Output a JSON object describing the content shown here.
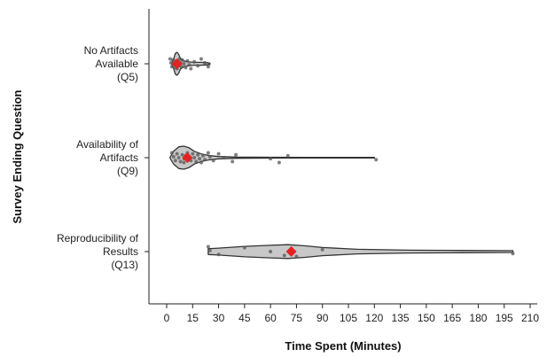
{
  "chart_data": {
    "type": "violin",
    "title": "",
    "xlabel": "Time Spent (Minutes)",
    "ylabel": "Survey Ending Question",
    "xlim": [
      -10,
      210
    ],
    "xticks": [
      0,
      15,
      30,
      45,
      60,
      75,
      90,
      105,
      120,
      135,
      150,
      165,
      180,
      195,
      210
    ],
    "grid": false,
    "colors": {
      "violin_fill": "#c8c8c8",
      "violin_stroke": "#333333",
      "point": "#555555",
      "mean_marker": "#e32222"
    },
    "categories": [
      {
        "label_lines": [
          "No Artifacts",
          "Available",
          "(Q5)"
        ],
        "mean": 6,
        "points": [
          2,
          2.5,
          3,
          3.5,
          4,
          4.5,
          5,
          5.5,
          6,
          6.5,
          7,
          7.5,
          8,
          8.5,
          9,
          10,
          11,
          12,
          13,
          14,
          16,
          18,
          20,
          22,
          24
        ],
        "density": [
          [
            3,
            0.05
          ],
          [
            4,
            0.4
          ],
          [
            5,
            0.9
          ],
          [
            6,
            1.0
          ],
          [
            7,
            0.8
          ],
          [
            8,
            0.45
          ],
          [
            10,
            0.25
          ],
          [
            13,
            0.16
          ],
          [
            16,
            0.12
          ],
          [
            20,
            0.12
          ],
          [
            23,
            0.1
          ],
          [
            25,
            0.05
          ]
        ]
      },
      {
        "label_lines": [
          "Availability of",
          "Artifacts",
          "(Q9)"
        ],
        "mean": 12,
        "points": [
          3,
          4,
          5,
          6,
          7,
          8,
          9,
          10,
          10,
          11,
          12,
          12,
          13,
          14,
          15,
          16,
          17,
          18,
          19,
          20,
          21,
          22,
          24,
          25,
          27,
          30,
          33,
          38,
          40,
          60,
          65,
          70,
          121
        ],
        "density": [
          [
            2,
            0.05
          ],
          [
            4,
            0.55
          ],
          [
            7,
            0.95
          ],
          [
            10,
            1.0
          ],
          [
            13,
            0.85
          ],
          [
            16,
            0.55
          ],
          [
            20,
            0.33
          ],
          [
            25,
            0.18
          ],
          [
            30,
            0.1
          ],
          [
            40,
            0.05
          ],
          [
            60,
            0.04
          ],
          [
            80,
            0.03
          ],
          [
            100,
            0.03
          ],
          [
            120,
            0.03
          ]
        ]
      },
      {
        "label_lines": [
          "Reproducibility of",
          "Results",
          "(Q13)"
        ],
        "mean": 72,
        "points": [
          24,
          25,
          30,
          45,
          60,
          68,
          72,
          73,
          75,
          90,
          200
        ],
        "density": [
          [
            24,
            0.25
          ],
          [
            30,
            0.3
          ],
          [
            45,
            0.45
          ],
          [
            60,
            0.55
          ],
          [
            70,
            0.6
          ],
          [
            80,
            0.5
          ],
          [
            90,
            0.35
          ],
          [
            110,
            0.2
          ],
          [
            140,
            0.12
          ],
          [
            170,
            0.1
          ],
          [
            200,
            0.08
          ]
        ]
      }
    ]
  }
}
